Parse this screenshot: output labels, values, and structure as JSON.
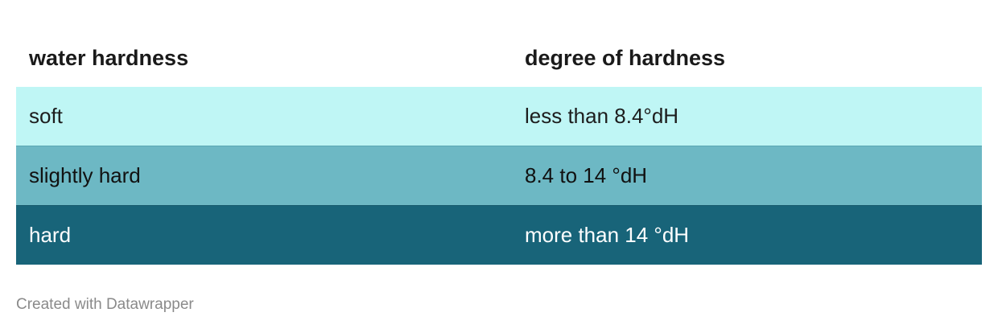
{
  "table": {
    "headers": [
      "water hardness",
      "degree of hardness"
    ],
    "rows": [
      {
        "hardness": "soft",
        "degree": "less than 8.4°dH",
        "color": "#bff6f5"
      },
      {
        "hardness": "slightly hard",
        "degree": "8.4 to 14 °dH",
        "color": "#6db8c4"
      },
      {
        "hardness": "hard",
        "degree": "more than 14 °dH",
        "color": "#186479"
      }
    ]
  },
  "footer": {
    "credit": "Created with Datawrapper"
  }
}
